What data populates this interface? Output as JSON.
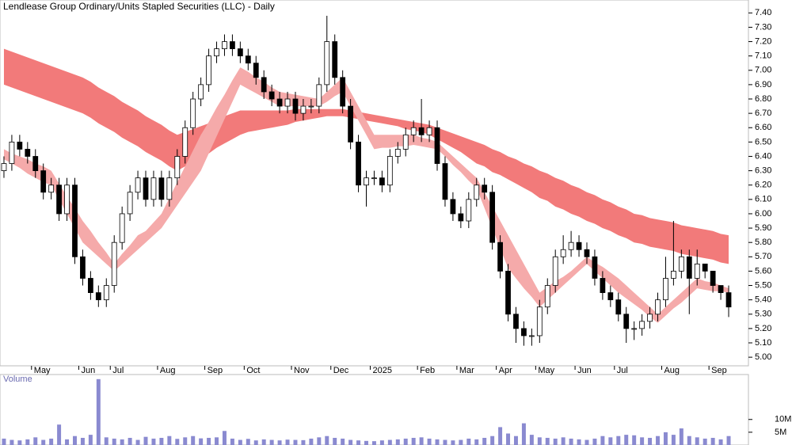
{
  "chart_data": {
    "type": "candlestick",
    "title": "Lendlease Group Ordinary/Units Stapled Securities (LLC) - Daily",
    "categories": [
      null,
      null,
      null,
      null,
      "May",
      null,
      null,
      null,
      null,
      null,
      "Jun",
      null,
      null,
      null,
      "Jul",
      null,
      null,
      null,
      null,
      null,
      "Aug",
      null,
      null,
      null,
      null,
      null,
      "Sep",
      null,
      null,
      null,
      null,
      "Oct",
      null,
      null,
      null,
      null,
      null,
      "Nov",
      null,
      null,
      null,
      null,
      "Dec",
      null,
      null,
      null,
      null,
      "2025",
      null,
      null,
      null,
      null,
      null,
      "Feb",
      null,
      null,
      null,
      null,
      "Mar",
      null,
      null,
      null,
      null,
      "Apr",
      null,
      null,
      null,
      null,
      "May",
      null,
      null,
      null,
      null,
      "Jun",
      null,
      null,
      null,
      null,
      "Jul",
      null,
      null,
      null,
      null,
      null,
      "Aug",
      null,
      null,
      null,
      null,
      null,
      "Sep",
      null,
      null
    ],
    "open": [
      6.3,
      6.35,
      6.5,
      6.45,
      6.4,
      6.3,
      6.15,
      6.2,
      6.0,
      6.2,
      5.7,
      5.55,
      5.45,
      5.4,
      5.5,
      5.8,
      6.0,
      6.15,
      6.25,
      6.1,
      6.25,
      6.1,
      6.25,
      6.4,
      6.6,
      6.8,
      6.9,
      7.1,
      7.15,
      7.2,
      7.15,
      7.1,
      7.05,
      6.95,
      6.85,
      6.8,
      6.75,
      6.8,
      6.7,
      6.75,
      6.75,
      6.9,
      7.2,
      6.95,
      6.75,
      6.5,
      6.2,
      6.25,
      6.25,
      6.2,
      6.4,
      6.45,
      6.55,
      6.6,
      6.55,
      6.6,
      6.35,
      6.1,
      6.0,
      5.95,
      6.1,
      6.2,
      6.15,
      5.8,
      5.6,
      5.3,
      5.2,
      5.15,
      5.15,
      5.35,
      5.5,
      5.7,
      5.75,
      5.8,
      5.75,
      5.7,
      5.55,
      5.45,
      5.4,
      5.3,
      5.2,
      5.2,
      5.25,
      5.3,
      5.4,
      5.55,
      5.6,
      5.7,
      5.55,
      5.65,
      5.6,
      5.5,
      5.45
    ],
    "high": [
      6.4,
      6.55,
      6.55,
      6.5,
      6.45,
      6.35,
      6.25,
      6.25,
      6.25,
      6.25,
      5.75,
      5.6,
      5.5,
      5.55,
      5.85,
      6.05,
      6.2,
      6.3,
      6.3,
      6.3,
      6.3,
      6.3,
      6.45,
      6.65,
      6.85,
      6.95,
      7.15,
      7.2,
      7.25,
      7.25,
      7.2,
      7.15,
      7.1,
      7.0,
      6.9,
      6.85,
      6.85,
      6.85,
      6.8,
      6.8,
      6.95,
      7.38,
      7.25,
      7.0,
      6.8,
      6.55,
      6.3,
      6.3,
      6.3,
      6.45,
      6.5,
      6.6,
      6.65,
      6.8,
      6.65,
      6.65,
      6.4,
      6.15,
      6.05,
      6.15,
      6.25,
      6.25,
      6.2,
      5.85,
      5.65,
      5.35,
      5.25,
      5.2,
      5.4,
      5.55,
      5.75,
      5.85,
      5.88,
      5.85,
      5.8,
      5.75,
      5.6,
      5.5,
      5.45,
      5.35,
      5.25,
      5.3,
      5.35,
      5.45,
      5.7,
      5.95,
      5.75,
      5.75,
      5.75,
      5.65,
      5.6,
      5.5,
      5.5
    ],
    "low": [
      6.25,
      6.3,
      6.4,
      6.35,
      6.25,
      6.1,
      6.1,
      5.95,
      5.95,
      5.65,
      5.5,
      5.4,
      5.35,
      5.35,
      5.45,
      5.75,
      5.95,
      6.1,
      6.05,
      6.05,
      6.05,
      6.05,
      6.2,
      6.35,
      6.55,
      6.75,
      6.85,
      7.05,
      7.1,
      7.1,
      7.05,
      7.0,
      6.9,
      6.8,
      6.75,
      6.7,
      6.7,
      6.65,
      6.65,
      6.7,
      6.7,
      6.85,
      6.9,
      6.7,
      6.45,
      6.15,
      6.05,
      6.2,
      6.15,
      6.15,
      6.35,
      6.4,
      6.5,
      6.5,
      6.5,
      6.3,
      6.05,
      5.95,
      5.9,
      5.9,
      6.05,
      6.1,
      5.75,
      5.55,
      5.25,
      5.1,
      5.08,
      5.08,
      5.1,
      5.3,
      5.45,
      5.65,
      5.7,
      5.7,
      5.65,
      5.5,
      5.4,
      5.35,
      5.25,
      5.1,
      5.12,
      5.15,
      5.2,
      5.25,
      5.35,
      5.5,
      5.55,
      5.3,
      5.5,
      5.55,
      5.45,
      5.4,
      5.28
    ],
    "close": [
      6.35,
      6.5,
      6.45,
      6.4,
      6.3,
      6.15,
      6.2,
      6.0,
      6.2,
      5.7,
      5.55,
      5.45,
      5.4,
      5.5,
      5.8,
      6.0,
      6.15,
      6.25,
      6.1,
      6.25,
      6.1,
      6.25,
      6.4,
      6.6,
      6.8,
      6.9,
      7.1,
      7.15,
      7.2,
      7.15,
      7.1,
      7.05,
      6.95,
      6.85,
      6.8,
      6.75,
      6.8,
      6.7,
      6.75,
      6.75,
      6.9,
      7.2,
      6.95,
      6.75,
      6.5,
      6.2,
      6.25,
      6.25,
      6.2,
      6.4,
      6.45,
      6.55,
      6.6,
      6.55,
      6.6,
      6.35,
      6.1,
      6.0,
      5.95,
      6.1,
      6.2,
      6.15,
      5.8,
      5.6,
      5.3,
      5.2,
      5.15,
      5.15,
      5.35,
      5.5,
      5.7,
      5.75,
      5.8,
      5.75,
      5.7,
      5.55,
      5.45,
      5.4,
      5.3,
      5.2,
      5.2,
      5.25,
      5.3,
      5.4,
      5.55,
      5.6,
      5.7,
      5.55,
      5.65,
      5.6,
      5.5,
      5.45,
      5.35
    ],
    "up_color": "#ffffff",
    "down_color": "#000000",
    "edge_color": "#000000",
    "bands": [
      {
        "color": "#f27a7a",
        "upper": [
          7.15,
          7.13,
          7.11,
          7.09,
          7.07,
          7.05,
          7.03,
          7.01,
          6.99,
          6.97,
          6.95,
          6.92,
          6.88,
          6.85,
          6.82,
          6.78,
          6.75,
          6.72,
          6.68,
          6.65,
          6.62,
          6.58,
          6.55,
          6.57,
          6.59,
          6.61,
          6.63,
          6.66,
          6.68,
          6.7,
          6.72,
          6.72,
          6.72,
          6.72,
          6.72,
          6.72,
          6.72,
          6.73,
          6.73,
          6.73,
          6.73,
          6.73,
          6.73,
          6.73,
          6.72,
          6.71,
          6.7,
          6.69,
          6.68,
          6.67,
          6.66,
          6.65,
          6.64,
          6.63,
          6.62,
          6.6,
          6.58,
          6.56,
          6.54,
          6.52,
          6.5,
          6.48,
          6.45,
          6.43,
          6.4,
          6.38,
          6.35,
          6.33,
          6.3,
          6.28,
          6.25,
          6.23,
          6.2,
          6.18,
          6.15,
          6.13,
          6.1,
          6.08,
          6.05,
          6.03,
          6.0,
          5.99,
          5.97,
          5.96,
          5.95,
          5.94,
          5.92,
          5.91,
          5.9,
          5.89,
          5.88,
          5.86,
          5.85
        ],
        "lower": [
          6.9,
          6.88,
          6.86,
          6.84,
          6.82,
          6.8,
          6.78,
          6.76,
          6.74,
          6.72,
          6.7,
          6.67,
          6.63,
          6.6,
          6.57,
          6.53,
          6.5,
          6.47,
          6.43,
          6.4,
          6.37,
          6.33,
          6.3,
          6.33,
          6.36,
          6.39,
          6.42,
          6.46,
          6.49,
          6.52,
          6.55,
          6.57,
          6.58,
          6.59,
          6.6,
          6.61,
          6.62,
          6.64,
          6.65,
          6.66,
          6.67,
          6.68,
          6.68,
          6.68,
          6.67,
          6.66,
          6.65,
          6.64,
          6.63,
          6.62,
          6.61,
          6.59,
          6.58,
          6.57,
          6.55,
          6.52,
          6.49,
          6.46,
          6.43,
          6.39,
          6.35,
          6.33,
          6.29,
          6.27,
          6.24,
          6.21,
          6.18,
          6.15,
          6.11,
          6.09,
          6.05,
          6.03,
          6.0,
          5.98,
          5.95,
          5.93,
          5.9,
          5.88,
          5.85,
          5.83,
          5.8,
          5.79,
          5.77,
          5.76,
          5.75,
          5.74,
          5.72,
          5.71,
          5.7,
          5.69,
          5.68,
          5.66,
          5.65
        ]
      },
      {
        "color": "#f5aaaa",
        "upper": [
          6.45,
          6.42,
          6.4,
          6.38,
          6.35,
          6.33,
          6.3,
          6.21,
          6.12,
          6.04,
          5.95,
          5.88,
          5.8,
          5.73,
          5.65,
          5.72,
          5.78,
          5.85,
          5.88,
          5.94,
          6.0,
          6.11,
          6.22,
          6.33,
          6.44,
          6.55,
          6.64,
          6.74,
          6.83,
          6.93,
          7.02,
          6.99,
          6.95,
          6.92,
          6.88,
          6.85,
          6.84,
          6.83,
          6.82,
          6.81,
          6.8,
          6.85,
          6.9,
          6.95,
          6.85,
          6.75,
          6.65,
          6.55,
          6.55,
          6.55,
          6.55,
          6.55,
          6.55,
          6.53,
          6.52,
          6.5,
          6.45,
          6.4,
          6.35,
          6.3,
          6.25,
          6.15,
          6.05,
          5.95,
          5.85,
          5.75,
          5.65,
          5.55,
          5.45,
          5.49,
          5.53,
          5.56,
          5.6,
          5.65,
          5.7,
          5.66,
          5.63,
          5.59,
          5.55,
          5.5,
          5.45,
          5.4,
          5.35,
          5.3,
          5.35,
          5.4,
          5.45,
          5.5,
          5.55,
          5.53,
          5.52,
          5.5,
          5.48
        ],
        "lower": [
          6.38,
          6.35,
          6.32,
          6.28,
          6.25,
          6.22,
          6.2,
          6.1,
          6.0,
          5.9,
          5.8,
          5.75,
          5.7,
          5.65,
          5.6,
          5.65,
          5.7,
          5.75,
          5.8,
          5.85,
          5.9,
          5.98,
          6.06,
          6.14,
          6.22,
          6.3,
          6.42,
          6.54,
          6.66,
          6.78,
          6.9,
          6.87,
          6.84,
          6.81,
          6.78,
          6.75,
          6.75,
          6.75,
          6.75,
          6.75,
          6.75,
          6.78,
          6.82,
          6.85,
          6.75,
          6.65,
          6.55,
          6.45,
          6.46,
          6.46,
          6.47,
          6.47,
          6.48,
          6.47,
          6.46,
          6.45,
          6.4,
          6.34,
          6.29,
          6.23,
          6.18,
          6.04,
          5.9,
          5.76,
          5.62,
          5.55,
          5.48,
          5.42,
          5.35,
          5.4,
          5.45,
          5.5,
          5.55,
          5.6,
          5.65,
          5.6,
          5.55,
          5.5,
          5.45,
          5.41,
          5.37,
          5.33,
          5.28,
          5.24,
          5.29,
          5.34,
          5.38,
          5.43,
          5.48,
          5.47,
          5.46,
          5.46,
          5.45
        ]
      }
    ],
    "ylim": [
      4.94,
      7.49
    ],
    "yticks": [
      {
        "value": 5.0,
        "label": "5.00"
      },
      {
        "value": 5.1,
        "label": "5.10"
      },
      {
        "value": 5.2,
        "label": "5.20"
      },
      {
        "value": 5.3,
        "label": "5.30"
      },
      {
        "value": 5.4,
        "label": "5.40"
      },
      {
        "value": 5.5,
        "label": "5.50"
      },
      {
        "value": 5.6,
        "label": "5.60"
      },
      {
        "value": 5.7,
        "label": "5.70"
      },
      {
        "value": 5.8,
        "label": "5.80"
      },
      {
        "value": 5.9,
        "label": "5.90"
      },
      {
        "value": 6.0,
        "label": "6.00"
      },
      {
        "value": 6.1,
        "label": "6.10"
      },
      {
        "value": 6.2,
        "label": "6.20"
      },
      {
        "value": 6.3,
        "label": "6.30"
      },
      {
        "value": 6.4,
        "label": "6.40"
      },
      {
        "value": 6.5,
        "label": "6.50"
      },
      {
        "value": 6.6,
        "label": "6.60"
      },
      {
        "value": 6.7,
        "label": "6.70"
      },
      {
        "value": 6.8,
        "label": "6.80"
      },
      {
        "value": 6.9,
        "label": "6.90"
      },
      {
        "value": 7.0,
        "label": "7.00"
      },
      {
        "value": 7.1,
        "label": "7.10"
      },
      {
        "value": 7.2,
        "label": "7.20"
      },
      {
        "value": 7.3,
        "label": "7.30"
      },
      {
        "value": 7.4,
        "label": "7.40"
      }
    ],
    "volume": {
      "type": "bar",
      "label": "Volume",
      "color": "#8a8ad0",
      "values": [
        2.5,
        2.0,
        1.8,
        2.2,
        3.0,
        2.0,
        2.5,
        8.0,
        2.2,
        3.5,
        2.8,
        4.0,
        25.8,
        3.0,
        2.5,
        2.2,
        2.8,
        2.0,
        3.2,
        2.5,
        2.8,
        3.5,
        2.4,
        3.0,
        3.5,
        2.6,
        2.8,
        3.0,
        5.5,
        2.5,
        2.0,
        2.4,
        1.8,
        2.2,
        2.0,
        1.8,
        2.1,
        2.0,
        1.9,
        2.5,
        3.0,
        3.5,
        2.8,
        2.5,
        2.0,
        1.8,
        1.6,
        1.5,
        1.8,
        2.0,
        2.2,
        2.5,
        2.8,
        3.0,
        2.5,
        2.2,
        2.0,
        1.8,
        2.0,
        2.5,
        2.2,
        2.8,
        3.5,
        7.0,
        4.5,
        3.5,
        8.5,
        4.0,
        3.0,
        2.8,
        2.5,
        3.0,
        2.5,
        2.2,
        2.0,
        2.5,
        3.5,
        3.0,
        3.5,
        4.0,
        3.8,
        3.0,
        2.8,
        3.5,
        5.0,
        4.0,
        6.5,
        3.5,
        3.0,
        2.5,
        2.8,
        2.2,
        3.5
      ],
      "ylim": [
        0,
        27.6
      ],
      "yticks": [
        {
          "value": 5,
          "label": "5M"
        },
        {
          "value": 10,
          "label": "10M"
        }
      ]
    }
  }
}
